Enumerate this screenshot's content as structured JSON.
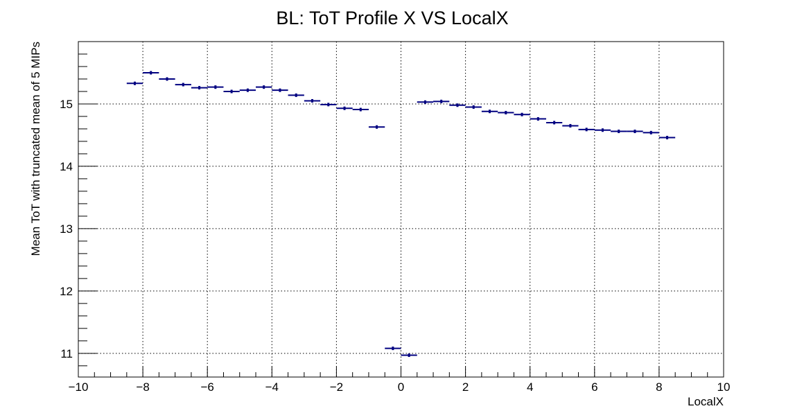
{
  "chart_data": {
    "type": "scatter",
    "title": "BL: ToT Profile X VS LocalX",
    "xlabel": "LocalX",
    "ylabel": "Mean ToT with truncated mean of 5 MIPs",
    "xlim": [
      -10,
      10
    ],
    "ylim": [
      10.62,
      16.0
    ],
    "x_ticks": [
      -10,
      -8,
      -6,
      -4,
      -2,
      0,
      2,
      4,
      6,
      8,
      10
    ],
    "x_tick_labels": [
      "−10",
      "−8",
      "−6",
      "−4",
      "−2",
      "0",
      "2",
      "4",
      "6",
      "8",
      "10"
    ],
    "y_ticks": [
      11,
      12,
      13,
      14,
      15
    ],
    "y_tick_labels": [
      "11",
      "12",
      "13",
      "14",
      "15"
    ],
    "grid": true,
    "legend": "none",
    "colors": {
      "marker": "#000080",
      "grid": "#000000",
      "axis": "#000000"
    },
    "series": [
      {
        "points": [
          {
            "x": -8.25,
            "y": 15.33,
            "xerr": 0.25
          },
          {
            "x": -7.75,
            "y": 15.5,
            "xerr": 0.25
          },
          {
            "x": -7.25,
            "y": 15.4,
            "xerr": 0.25
          },
          {
            "x": -6.75,
            "y": 15.31,
            "xerr": 0.25
          },
          {
            "x": -6.25,
            "y": 15.26,
            "xerr": 0.25
          },
          {
            "x": -5.75,
            "y": 15.27,
            "xerr": 0.25
          },
          {
            "x": -5.25,
            "y": 15.2,
            "xerr": 0.25
          },
          {
            "x": -4.75,
            "y": 15.22,
            "xerr": 0.25
          },
          {
            "x": -4.25,
            "y": 15.27,
            "xerr": 0.25
          },
          {
            "x": -3.75,
            "y": 15.22,
            "xerr": 0.25
          },
          {
            "x": -3.25,
            "y": 15.14,
            "xerr": 0.25
          },
          {
            "x": -2.75,
            "y": 15.05,
            "xerr": 0.25
          },
          {
            "x": -2.25,
            "y": 14.99,
            "xerr": 0.25
          },
          {
            "x": -1.75,
            "y": 14.93,
            "xerr": 0.25
          },
          {
            "x": -1.25,
            "y": 14.91,
            "xerr": 0.25
          },
          {
            "x": -0.75,
            "y": 14.63,
            "xerr": 0.25
          },
          {
            "x": -0.25,
            "y": 11.08,
            "xerr": 0.25
          },
          {
            "x": 0.25,
            "y": 10.97,
            "xerr": 0.25
          },
          {
            "x": 0.75,
            "y": 15.03,
            "xerr": 0.25
          },
          {
            "x": 1.25,
            "y": 15.04,
            "xerr": 0.25
          },
          {
            "x": 1.75,
            "y": 14.98,
            "xerr": 0.25
          },
          {
            "x": 2.25,
            "y": 14.95,
            "xerr": 0.25
          },
          {
            "x": 2.75,
            "y": 14.88,
            "xerr": 0.25
          },
          {
            "x": 3.25,
            "y": 14.86,
            "xerr": 0.25
          },
          {
            "x": 3.75,
            "y": 14.83,
            "xerr": 0.25
          },
          {
            "x": 4.25,
            "y": 14.76,
            "xerr": 0.25
          },
          {
            "x": 4.75,
            "y": 14.7,
            "xerr": 0.25
          },
          {
            "x": 5.25,
            "y": 14.65,
            "xerr": 0.25
          },
          {
            "x": 5.75,
            "y": 14.59,
            "xerr": 0.25
          },
          {
            "x": 6.25,
            "y": 14.58,
            "xerr": 0.25
          },
          {
            "x": 6.75,
            "y": 14.56,
            "xerr": 0.25
          },
          {
            "x": 7.25,
            "y": 14.56,
            "xerr": 0.25
          },
          {
            "x": 7.75,
            "y": 14.54,
            "xerr": 0.25
          },
          {
            "x": 8.25,
            "y": 14.46,
            "xerr": 0.25
          }
        ]
      }
    ]
  }
}
